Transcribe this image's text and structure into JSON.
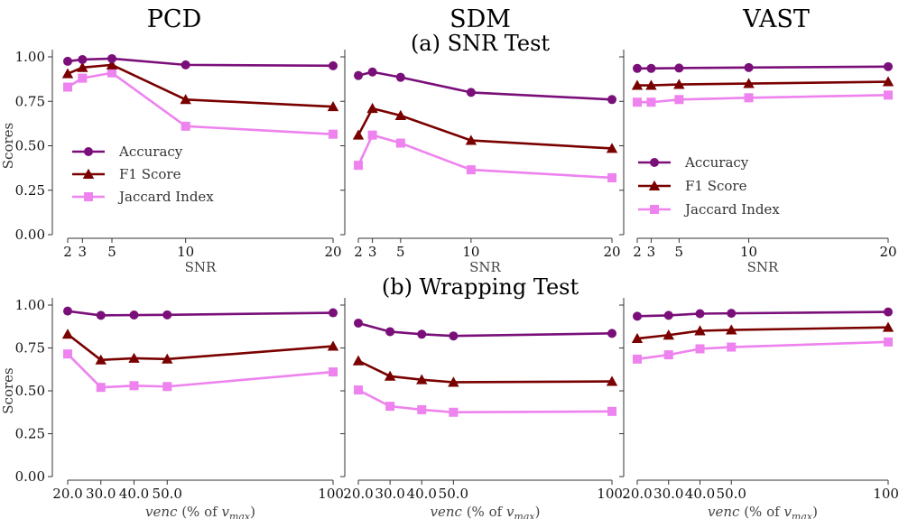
{
  "figure": {
    "column_titles": [
      "PCD",
      "SDM",
      "VAST"
    ],
    "row_titles": [
      "(a) SNR Test",
      "(b) Wrapping Test"
    ],
    "colors": {
      "accuracy": "#7a0f7a",
      "f1": "#7a0000",
      "jaccard": "#ee82ee"
    },
    "series_names": [
      "Accuracy",
      "F1 Score",
      "Jaccard Index"
    ]
  },
  "chart_data": [
    {
      "type": "line",
      "id": "snr-pcd",
      "row": 0,
      "col": 0,
      "title": "PCD",
      "xlabel": "SNR",
      "ylabel": "Scores",
      "x": [
        2,
        3,
        5,
        10,
        20
      ],
      "xticks": [
        "2",
        "3",
        "5",
        "10",
        "20"
      ],
      "ylim": [
        0,
        1
      ],
      "yticks": [
        "0.00",
        "0.25",
        "0.50",
        "0.75",
        "1.00"
      ],
      "legend": "center-left",
      "series": [
        {
          "name": "Accuracy",
          "values": [
            0.975,
            0.985,
            0.99,
            0.955,
            0.95
          ]
        },
        {
          "name": "F1 Score",
          "values": [
            0.905,
            0.94,
            0.955,
            0.76,
            0.72
          ]
        },
        {
          "name": "Jaccard Index",
          "values": [
            0.83,
            0.88,
            0.91,
            0.61,
            0.565
          ]
        }
      ]
    },
    {
      "type": "line",
      "id": "snr-sdm",
      "row": 0,
      "col": 1,
      "title": "SDM",
      "xlabel": "SNR",
      "ylabel": "",
      "x": [
        2,
        3,
        5,
        10,
        20
      ],
      "xticks": [
        "2",
        "3",
        "5",
        "10",
        "20"
      ],
      "ylim": [
        0,
        1
      ],
      "yticks": [],
      "legend": "none",
      "series": [
        {
          "name": "Accuracy",
          "values": [
            0.895,
            0.915,
            0.885,
            0.8,
            0.76
          ]
        },
        {
          "name": "F1 Score",
          "values": [
            0.56,
            0.71,
            0.67,
            0.53,
            0.485
          ]
        },
        {
          "name": "Jaccard Index",
          "values": [
            0.39,
            0.56,
            0.515,
            0.365,
            0.32
          ]
        }
      ]
    },
    {
      "type": "line",
      "id": "snr-vast",
      "row": 0,
      "col": 2,
      "title": "VAST",
      "xlabel": "SNR",
      "ylabel": "",
      "x": [
        2,
        3,
        5,
        10,
        20
      ],
      "xticks": [
        "2",
        "3",
        "5",
        "10",
        "20"
      ],
      "ylim": [
        0,
        1
      ],
      "yticks": [],
      "legend": "bottom-left",
      "series": [
        {
          "name": "Accuracy",
          "values": [
            0.935,
            0.935,
            0.937,
            0.94,
            0.945
          ]
        },
        {
          "name": "F1 Score",
          "values": [
            0.84,
            0.84,
            0.845,
            0.85,
            0.86
          ]
        },
        {
          "name": "Jaccard Index",
          "values": [
            0.745,
            0.745,
            0.76,
            0.77,
            0.785
          ]
        }
      ]
    },
    {
      "type": "line",
      "id": "wrap-pcd",
      "row": 1,
      "col": 0,
      "title": "",
      "xlabel_prefix": "venc",
      "xlabel_suffix": " (% of ",
      "xlabel_var": "v",
      "xlabel_sub": "max",
      "xlabel_close": ")",
      "ylabel": "Scores",
      "x": [
        20,
        30,
        40,
        50,
        100
      ],
      "xticks": [
        "20.0",
        "30.0",
        "40.0",
        "50.0",
        "100."
      ],
      "ylim": [
        0,
        1
      ],
      "yticks": [
        "0.00",
        "0.25",
        "0.50",
        "0.75",
        "1.00"
      ],
      "legend": "none",
      "series": [
        {
          "name": "Accuracy",
          "values": [
            0.965,
            0.94,
            0.942,
            0.943,
            0.955
          ]
        },
        {
          "name": "F1 Score",
          "values": [
            0.83,
            0.68,
            0.69,
            0.685,
            0.76
          ]
        },
        {
          "name": "Jaccard Index",
          "values": [
            0.715,
            0.52,
            0.53,
            0.525,
            0.61
          ]
        }
      ]
    },
    {
      "type": "line",
      "id": "wrap-sdm",
      "row": 1,
      "col": 1,
      "title": "",
      "xlabel_prefix": "venc",
      "xlabel_suffix": " (% of ",
      "xlabel_var": "v",
      "xlabel_sub": "max",
      "xlabel_close": ")",
      "ylabel": "",
      "x": [
        20,
        30,
        40,
        50,
        100
      ],
      "xticks": [
        "20.0",
        "30.0",
        "40.0",
        "50.0",
        "100."
      ],
      "ylim": [
        0,
        1
      ],
      "yticks": [],
      "legend": "none",
      "series": [
        {
          "name": "Accuracy",
          "values": [
            0.895,
            0.845,
            0.83,
            0.82,
            0.835
          ]
        },
        {
          "name": "F1 Score",
          "values": [
            0.675,
            0.585,
            0.565,
            0.55,
            0.555
          ]
        },
        {
          "name": "Jaccard Index",
          "values": [
            0.505,
            0.41,
            0.39,
            0.375,
            0.38
          ]
        }
      ]
    },
    {
      "type": "line",
      "id": "wrap-vast",
      "row": 1,
      "col": 2,
      "title": "",
      "xlabel_prefix": "venc",
      "xlabel_suffix": " (% of ",
      "xlabel_var": "v",
      "xlabel_sub": "max",
      "xlabel_close": ")",
      "ylabel": "",
      "x": [
        20,
        30,
        40,
        50,
        100
      ],
      "xticks": [
        "20.0",
        "30.0",
        "40.0",
        "50.0",
        "100."
      ],
      "ylim": [
        0,
        1
      ],
      "yticks": [],
      "legend": "none",
      "series": [
        {
          "name": "Accuracy",
          "values": [
            0.935,
            0.94,
            0.95,
            0.952,
            0.96
          ]
        },
        {
          "name": "F1 Score",
          "values": [
            0.805,
            0.825,
            0.85,
            0.855,
            0.87
          ]
        },
        {
          "name": "Jaccard Index",
          "values": [
            0.685,
            0.71,
            0.745,
            0.755,
            0.785
          ]
        }
      ]
    }
  ]
}
